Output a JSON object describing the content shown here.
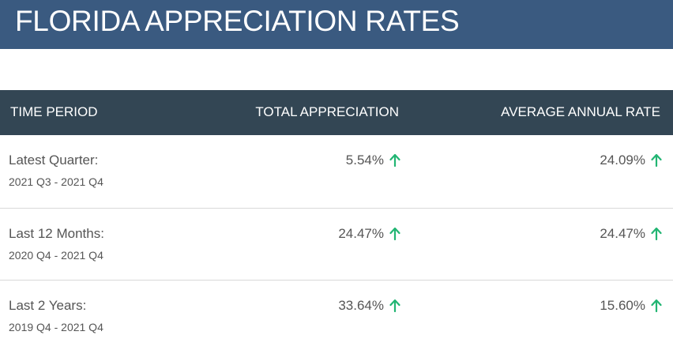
{
  "title": "FLORIDA APPRECIATION RATES",
  "table": {
    "headers": {
      "period": "TIME PERIOD",
      "total": "TOTAL APPRECIATION",
      "rate": "AVERAGE ANNUAL RATE"
    },
    "rows": [
      {
        "label": "Latest Quarter:",
        "range": "2021 Q3 - 2021 Q4",
        "total": "5.54%",
        "rate": "24.09%",
        "total_trend": "up-arrow-icon",
        "rate_trend": "up-arrow-icon"
      },
      {
        "label": "Last 12 Months:",
        "range": "2020 Q4 - 2021 Q4",
        "total": "24.47%",
        "rate": "24.47%",
        "total_trend": "up-arrow-icon",
        "rate_trend": "up-arrow-icon"
      },
      {
        "label": "Last 2 Years:",
        "range": "2019 Q4 - 2021 Q4",
        "total": "33.64%",
        "rate": "15.60%",
        "total_trend": "up-arrow-icon",
        "rate_trend": "up-arrow-icon"
      }
    ]
  },
  "colors": {
    "title_bar": "#3a5a80",
    "header_bar": "#334654",
    "up_arrow": "#22b573"
  }
}
